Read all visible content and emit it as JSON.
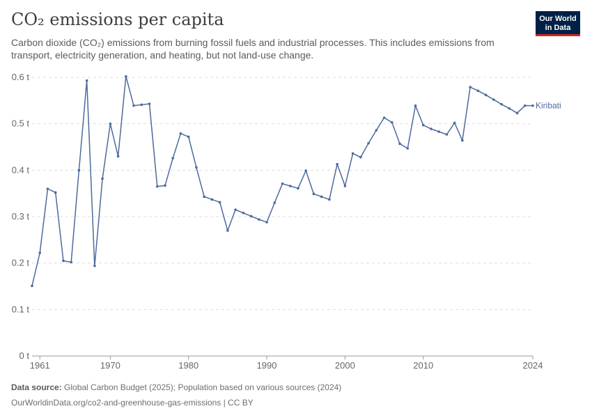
{
  "header": {
    "title": "CO₂ emissions per capita",
    "subtitle": "Carbon dioxide (CO₂) emissions from burning fossil fuels and industrial processes. This includes emissions from transport, electricity generation, and heating, but not land-use change."
  },
  "logo": {
    "line1": "Our World",
    "line2": "in Data",
    "bg_color": "#002147",
    "accent_color": "#ce261e"
  },
  "footer": {
    "source_label": "Data source:",
    "source_text": " Global Carbon Budget (2025); Population based on various sources (2024)",
    "url_text": "OurWorldinData.org/co2-and-greenhouse-gas-emissions | CC BY"
  },
  "chart_data": {
    "type": "line",
    "line_color": "#4c6a9c",
    "grid": true,
    "ylim": [
      0,
      0.6
    ],
    "xlim": [
      1960,
      2024
    ],
    "y_ticks": [
      {
        "value": 0,
        "label": "0 t"
      },
      {
        "value": 0.1,
        "label": "0.1 t"
      },
      {
        "value": 0.2,
        "label": "0.2 t"
      },
      {
        "value": 0.3,
        "label": "0.3 t"
      },
      {
        "value": 0.4,
        "label": "0.4 t"
      },
      {
        "value": 0.5,
        "label": "0.5 t"
      },
      {
        "value": 0.6,
        "label": "0.6 t"
      }
    ],
    "x_ticks": [
      {
        "value": 1961,
        "label": "1961"
      },
      {
        "value": 1970,
        "label": "1970"
      },
      {
        "value": 1980,
        "label": "1980"
      },
      {
        "value": 1990,
        "label": "1990"
      },
      {
        "value": 2000,
        "label": "2000"
      },
      {
        "value": 2010,
        "label": "2010"
      },
      {
        "value": 2024,
        "label": "2024"
      }
    ],
    "series": [
      {
        "name": "Kiribati",
        "x": [
          1960,
          1961,
          1962,
          1963,
          1964,
          1965,
          1966,
          1967,
          1968,
          1969,
          1970,
          1971,
          1972,
          1973,
          1974,
          1975,
          1976,
          1977,
          1978,
          1979,
          1980,
          1981,
          1982,
          1983,
          1984,
          1985,
          1986,
          1987,
          1988,
          1989,
          1990,
          1991,
          1992,
          1993,
          1994,
          1995,
          1996,
          1997,
          1998,
          1999,
          2000,
          2001,
          2002,
          2003,
          2004,
          2005,
          2006,
          2007,
          2008,
          2009,
          2010,
          2011,
          2012,
          2013,
          2014,
          2015,
          2016,
          2017,
          2018,
          2019,
          2020,
          2021,
          2022,
          2023,
          2024
        ],
        "values": [
          0.151,
          0.222,
          0.36,
          0.352,
          0.205,
          0.202,
          0.4,
          0.593,
          0.194,
          0.382,
          0.5,
          0.43,
          0.602,
          0.539,
          0.541,
          0.543,
          0.365,
          0.367,
          0.426,
          0.479,
          0.472,
          0.406,
          0.343,
          0.337,
          0.331,
          0.27,
          0.315,
          0.308,
          0.301,
          0.294,
          0.288,
          0.33,
          0.371,
          0.366,
          0.361,
          0.399,
          0.349,
          0.343,
          0.337,
          0.413,
          0.366,
          0.436,
          0.428,
          0.458,
          0.486,
          0.513,
          0.503,
          0.457,
          0.447,
          0.539,
          0.497,
          0.489,
          0.483,
          0.477,
          0.502,
          0.464,
          0.579,
          0.571,
          0.562,
          0.552,
          0.542,
          0.533,
          0.523,
          0.539,
          0.539
        ]
      }
    ]
  }
}
